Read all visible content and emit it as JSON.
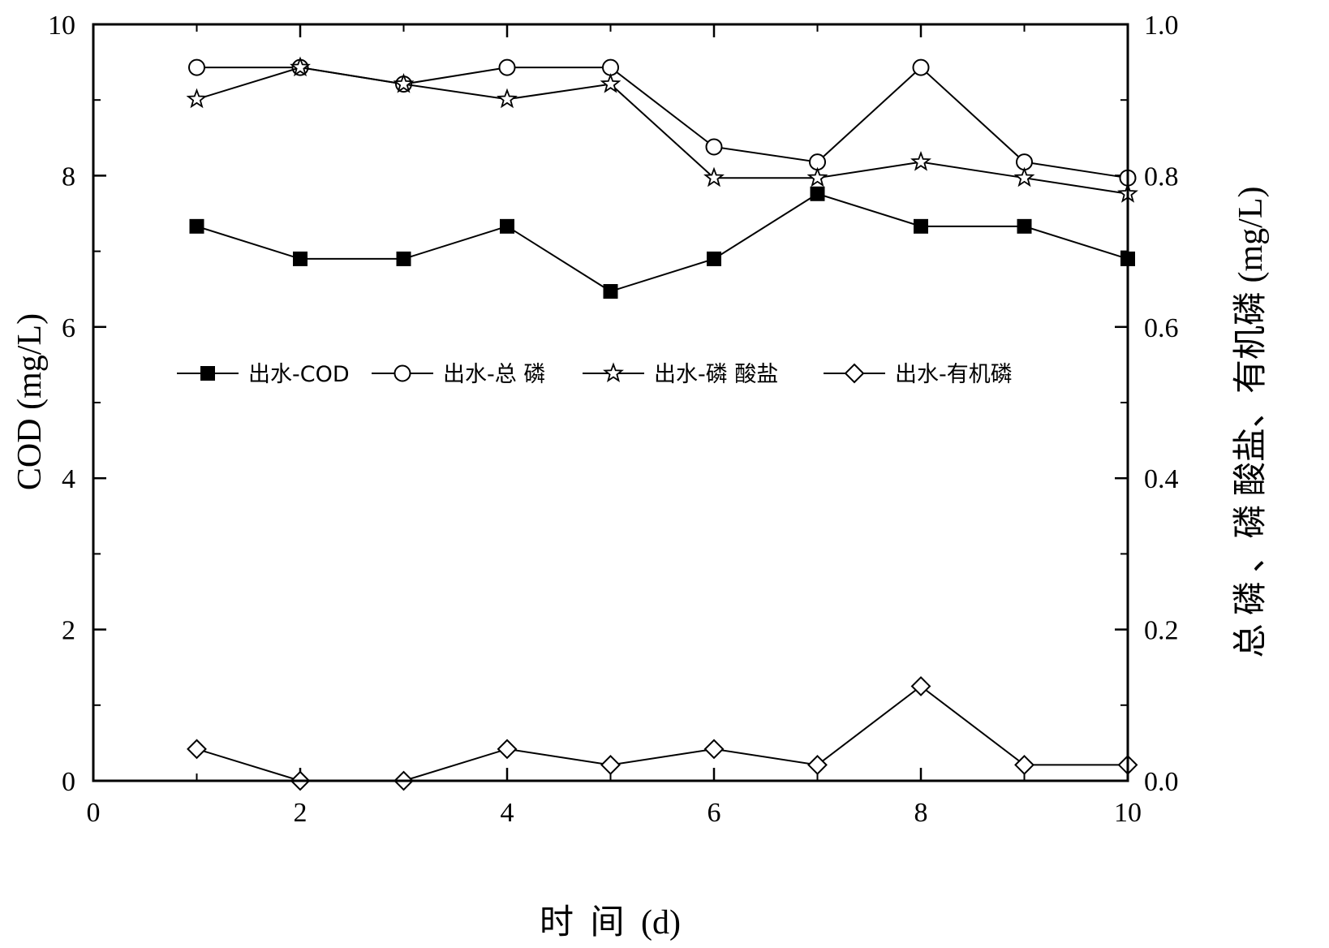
{
  "chart_data": {
    "type": "line",
    "xlabel": "时 间 (d)",
    "ylabel_left": "COD (mg/L)",
    "ylabel_right": "总 磷 、磷 酸盐、有机磷 (mg/L)",
    "xlim": [
      0,
      10
    ],
    "ylim_left": [
      0,
      10
    ],
    "ylim_right": [
      0,
      1.0
    ],
    "x_ticks": [
      "0",
      "2",
      "4",
      "6",
      "8",
      "10"
    ],
    "y_left_ticks": [
      "0",
      "2",
      "4",
      "6",
      "8",
      "10"
    ],
    "y_right_ticks": [
      "0.0",
      "0.2",
      "0.4",
      "0.6",
      "0.8",
      "1.0"
    ],
    "grid": false,
    "legend_position": "middle, horizontal",
    "series": [
      {
        "name": "出水-COD",
        "axis": "left",
        "marker": "filled-square",
        "x": [
          1,
          2,
          3,
          4,
          5,
          6,
          7,
          8,
          9,
          10
        ],
        "y": [
          7.33,
          6.9,
          6.9,
          7.33,
          6.47,
          6.9,
          7.76,
          7.33,
          7.33,
          6.9
        ]
      },
      {
        "name": "出水-总 磷",
        "axis": "right",
        "marker": "open-circle",
        "x": [
          1,
          2,
          3,
          4,
          5,
          6,
          7,
          8,
          9,
          10
        ],
        "y": [
          0.943,
          0.943,
          0.921,
          0.943,
          0.943,
          0.838,
          0.818,
          0.943,
          0.818,
          0.797
        ]
      },
      {
        "name": "出水-磷 酸盐",
        "axis": "right",
        "marker": "open-star",
        "x": [
          1,
          2,
          3,
          4,
          5,
          6,
          7,
          8,
          9,
          10
        ],
        "y": [
          0.901,
          0.943,
          0.921,
          0.901,
          0.921,
          0.797,
          0.797,
          0.818,
          0.797,
          0.776
        ]
      },
      {
        "name": "出水-有机磷",
        "axis": "right",
        "marker": "open-diamond",
        "x": [
          1,
          2,
          3,
          4,
          5,
          6,
          7,
          8,
          9,
          10
        ],
        "y": [
          0.042,
          0.0,
          0.0,
          0.042,
          0.021,
          0.042,
          0.021,
          0.125,
          0.021,
          0.021
        ]
      }
    ]
  }
}
